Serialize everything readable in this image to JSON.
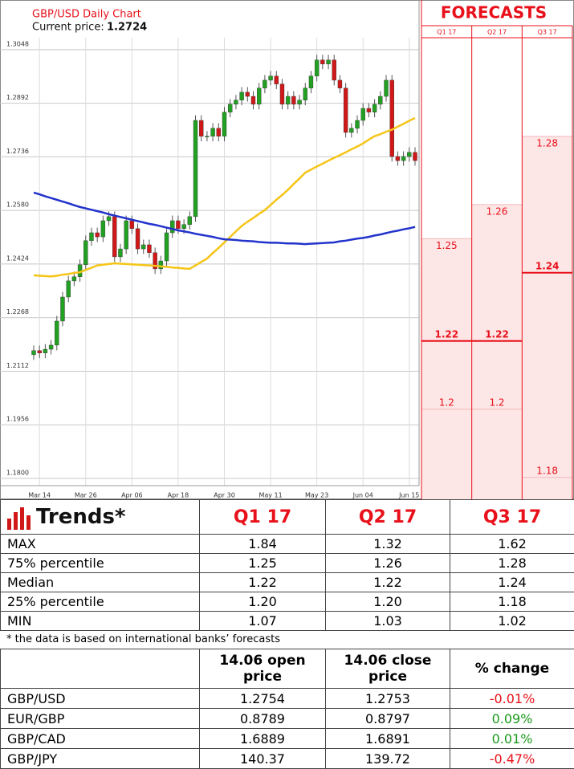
{
  "chart_data": [
    {
      "type": "candlestick",
      "title": "GBP/USD Daily Chart",
      "current_price_label": "Current price:",
      "current_price": 1.2724,
      "categories": [
        null,
        "Mar 14",
        null,
        null,
        null,
        null,
        null,
        null,
        null,
        "Mar 26",
        null,
        null,
        null,
        null,
        null,
        null,
        null,
        "Apr 06",
        null,
        null,
        null,
        null,
        null,
        null,
        null,
        "Apr 18",
        null,
        null,
        null,
        null,
        null,
        null,
        null,
        "Apr 30",
        null,
        null,
        null,
        null,
        null,
        null,
        null,
        "May 11",
        null,
        null,
        null,
        null,
        null,
        null,
        null,
        "May 23",
        null,
        null,
        null,
        null,
        null,
        null,
        null,
        "Jun 04",
        null,
        null,
        null,
        null,
        null,
        null,
        null,
        "Jun 15",
        null
      ],
      "open": [
        1.216,
        1.2172,
        1.2165,
        1.2176,
        1.2188,
        1.2258,
        1.2328,
        1.2375,
        1.2387,
        1.2422,
        1.2492,
        1.2515,
        1.2503,
        1.255,
        1.2562,
        1.2445,
        1.2468,
        1.255,
        1.2527,
        1.2468,
        1.248,
        1.2457,
        1.241,
        1.2433,
        1.2515,
        1.255,
        1.2527,
        1.2539,
        1.2562,
        1.2842,
        1.2796,
        1.2796,
        1.2819,
        1.2796,
        1.2866,
        1.2889,
        1.2901,
        1.2924,
        1.2912,
        1.2889,
        1.2936,
        1.2959,
        1.2971,
        1.2948,
        1.2889,
        1.2912,
        1.2889,
        1.2901,
        1.2936,
        1.2971,
        1.3018,
        1.3006,
        1.3018,
        1.2959,
        1.2936,
        1.2807,
        1.2819,
        1.2842,
        1.2877,
        1.2866,
        1.2889,
        1.2912,
        1.2959,
        1.2737,
        1.2725,
        1.2737,
        1.2749
      ],
      "high": [
        1.2187,
        1.2187,
        1.2191,
        1.2203,
        1.2273,
        1.2343,
        1.239,
        1.2402,
        1.2437,
        1.2507,
        1.253,
        1.253,
        1.2565,
        1.2577,
        1.2577,
        1.2483,
        1.2565,
        1.2565,
        1.2542,
        1.2495,
        1.2495,
        1.2472,
        1.2448,
        1.253,
        1.2565,
        1.2565,
        1.2554,
        1.2577,
        1.2857,
        1.2857,
        1.2811,
        1.2834,
        1.2834,
        1.2881,
        1.2904,
        1.2916,
        1.2939,
        1.2939,
        1.2927,
        1.2951,
        1.2974,
        1.2986,
        1.2986,
        1.2963,
        1.2927,
        1.2927,
        1.2916,
        1.2951,
        1.2986,
        1.3033,
        1.3033,
        1.3033,
        1.3033,
        1.2974,
        1.2951,
        1.2834,
        1.2857,
        1.2892,
        1.2892,
        1.2904,
        1.2927,
        1.2974,
        1.2974,
        1.2752,
        1.2752,
        1.2764,
        1.2764
      ],
      "low": [
        1.2145,
        1.215,
        1.215,
        1.2161,
        1.2173,
        1.2243,
        1.2313,
        1.236,
        1.2372,
        1.2407,
        1.2477,
        1.2488,
        1.2488,
        1.2535,
        1.243,
        1.243,
        1.2453,
        1.2512,
        1.2453,
        1.2453,
        1.2442,
        1.2395,
        1.2395,
        1.2418,
        1.25,
        1.2512,
        1.2512,
        1.2524,
        1.2547,
        1.2781,
        1.2781,
        1.2781,
        1.2781,
        1.2781,
        1.2851,
        1.2874,
        1.2886,
        1.2897,
        1.2874,
        1.2874,
        1.2921,
        1.2944,
        1.2933,
        1.2874,
        1.2874,
        1.2874,
        1.2874,
        1.2886,
        1.2921,
        1.2956,
        1.2991,
        1.2991,
        1.2944,
        1.2921,
        1.2792,
        1.2792,
        1.2804,
        1.2827,
        1.2851,
        1.2851,
        1.2874,
        1.2897,
        1.2722,
        1.271,
        1.271,
        1.2722,
        1.271
      ],
      "close": [
        1.2172,
        1.2165,
        1.2176,
        1.2188,
        1.2258,
        1.2328,
        1.2375,
        1.2387,
        1.2422,
        1.2492,
        1.2515,
        1.2503,
        1.255,
        1.2562,
        1.2445,
        1.2468,
        1.255,
        1.2527,
        1.2468,
        1.248,
        1.2457,
        1.241,
        1.2433,
        1.2515,
        1.255,
        1.2527,
        1.2539,
        1.2562,
        1.2842,
        1.2796,
        1.2796,
        1.2819,
        1.2796,
        1.2866,
        1.2889,
        1.2901,
        1.2924,
        1.2912,
        1.2889,
        1.2936,
        1.2959,
        1.2971,
        1.2948,
        1.2889,
        1.2912,
        1.2889,
        1.2901,
        1.2936,
        1.2971,
        1.3018,
        1.3006,
        1.3018,
        1.2959,
        1.2936,
        1.2807,
        1.2819,
        1.2842,
        1.2877,
        1.2866,
        1.2889,
        1.2912,
        1.2959,
        1.2737,
        1.2725,
        1.2737,
        1.2749,
        1.2725
      ],
      "lines": [
        {
          "color": "#f5c518",
          "values": [
            1.2391,
            1.239,
            1.2389,
            1.2388,
            1.239,
            1.2393,
            1.2395,
            1.2398,
            1.24,
            1.2407,
            1.2413,
            1.242,
            1.2422,
            1.2424,
            1.2426,
            1.2425,
            1.2424,
            1.2423,
            1.2422,
            1.2421,
            1.242,
            1.2419,
            1.2417,
            1.2416,
            1.2414,
            1.2413,
            1.2411,
            1.241,
            1.242,
            1.243,
            1.244,
            1.2456,
            1.2471,
            1.2487,
            1.2503,
            1.2519,
            1.2535,
            1.2547,
            1.2558,
            1.257,
            1.2581,
            1.2596,
            1.2611,
            1.2625,
            1.264,
            1.2657,
            1.2673,
            1.269,
            1.2699,
            1.2708,
            1.2716,
            1.2725,
            1.2733,
            1.2741,
            1.2749,
            1.2758,
            1.2766,
            1.2775,
            1.2786,
            1.2796,
            1.2802,
            1.2809,
            1.2815,
            1.2824,
            1.2832,
            1.2841,
            1.2849
          ]
        },
        {
          "color": "#2233cc",
          "values": [
            1.2632,
            1.2627,
            1.2621,
            1.2616,
            1.2611,
            1.2606,
            1.2601,
            1.2595,
            1.259,
            1.2586,
            1.2582,
            1.2578,
            1.2574,
            1.2569,
            1.2565,
            1.2561,
            1.2557,
            1.2553,
            1.2549,
            1.2545,
            1.2541,
            1.2538,
            1.2534,
            1.253,
            1.2526,
            1.2522,
            1.2519,
            1.2516,
            1.2512,
            1.2509,
            1.2506,
            1.2503,
            1.2499,
            1.2496,
            1.2495,
            1.2494,
            1.2492,
            1.2491,
            1.249,
            1.2488,
            1.2487,
            1.2486,
            1.2486,
            1.2485,
            1.2484,
            1.2484,
            1.2483,
            1.2482,
            1.2483,
            1.2484,
            1.2485,
            1.2486,
            1.2487,
            1.249,
            1.2492,
            1.2495,
            1.2498,
            1.25,
            1.2503,
            1.2507,
            1.251,
            1.2514,
            1.2518,
            1.2521,
            1.2525,
            1.2528,
            1.2532
          ]
        }
      ],
      "up_color": "#22a022",
      "down_color": "#d01818",
      "ylim": [
        1.1779,
        1.3099
      ],
      "yticks": [
        {
          "value": 1.18,
          "label": "1.1800"
        },
        1.1956,
        1.2112,
        1.2268,
        1.2424,
        {
          "value": 1.258,
          "label": "1.2580"
        },
        1.2736,
        1.2892,
        1.3048
      ],
      "grid": true
    },
    {
      "type": "forecast",
      "title": "FORECASTS",
      "categories": [
        "Q1 17",
        "Q2 17",
        "Q3 17"
      ],
      "upper": [
        1.25,
        1.26,
        1.28
      ],
      "median": [
        1.22,
        1.22,
        1.24
      ],
      "lower": [
        1.2,
        1.2,
        1.18
      ],
      "ylim": [
        1.1736,
        1.3089
      ],
      "color": "#e8101a"
    }
  ],
  "trends_table": {
    "title": "Trends*",
    "columns": [
      "Q1 17",
      "Q2 17",
      "Q3 17"
    ],
    "rows": [
      [
        "MAX",
        "1.84",
        "1.32",
        "1.62"
      ],
      [
        "75% percentile",
        "1.25",
        "1.26",
        "1.28"
      ],
      [
        "Median",
        "1.22",
        "1.22",
        "1.24"
      ],
      [
        "25% percentile",
        "1.20",
        "1.20",
        "1.18"
      ],
      [
        "MIN",
        "1.07",
        "1.03",
        "1.02"
      ]
    ]
  },
  "footnote": "* the data is based on international banks’ forecasts",
  "price_table": {
    "columns": [
      "14.06 open price",
      "14.06 close price",
      "% change"
    ],
    "rows": [
      [
        "GBP/USD",
        "1.2754",
        "1.2753",
        "-0.01%"
      ],
      [
        "EUR/GBP",
        "0.8789",
        "0.8797",
        "0.09%"
      ],
      [
        "GBP/CAD",
        "1.6889",
        "1.6891",
        "0.01%"
      ],
      [
        "GBP/JPY",
        "140.37",
        "139.72",
        "-0.47%"
      ]
    ]
  }
}
